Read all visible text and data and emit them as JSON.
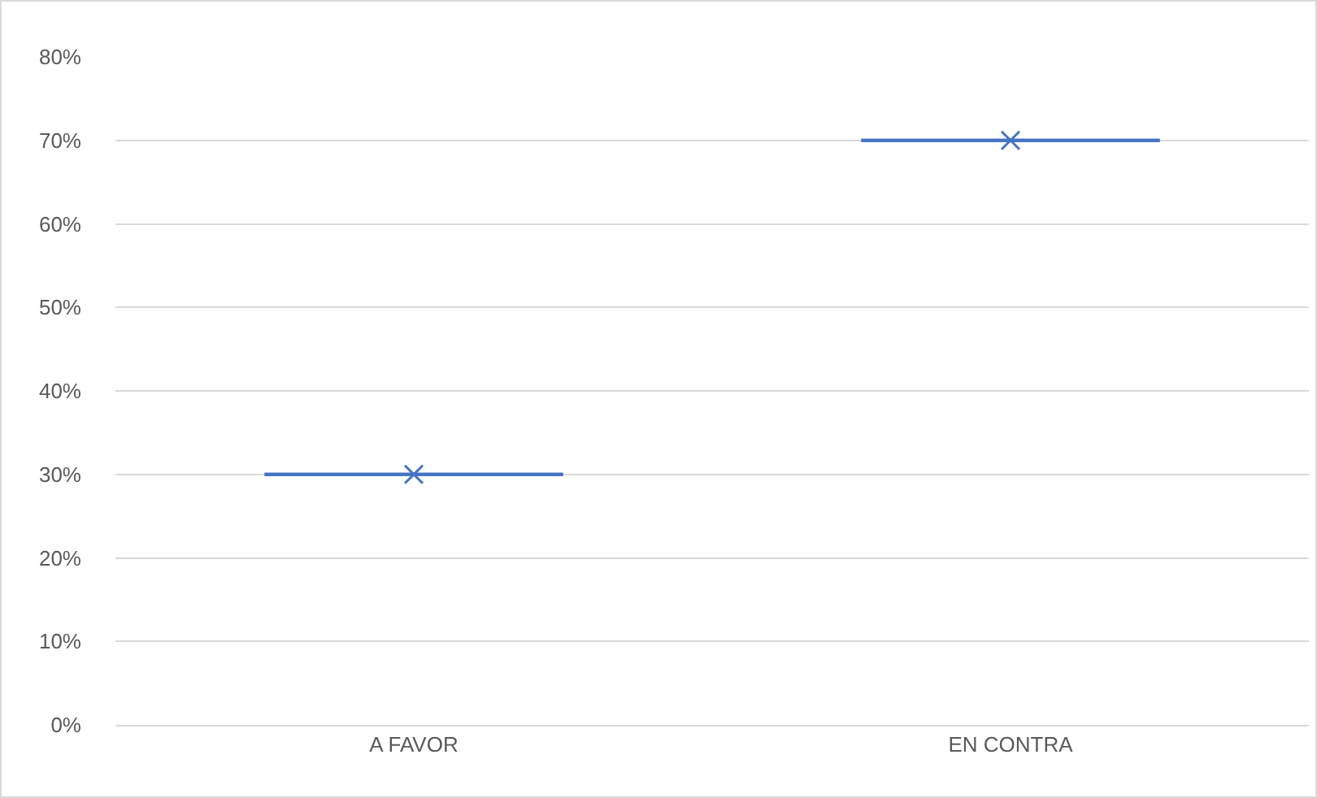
{
  "chart_data": {
    "type": "box",
    "categories": [
      "A FAVOR",
      "EN CONTRA"
    ],
    "boxes": [
      {
        "low": 30,
        "q1": 30,
        "median": 30,
        "q3": 30,
        "high": 30,
        "mean": 30
      },
      {
        "low": 70,
        "q1": 70,
        "median": 70,
        "q3": 70,
        "high": 70,
        "mean": 70
      }
    ],
    "color": "#4472c4",
    "marker": "cross",
    "grid": "y",
    "ylim": [
      0,
      80
    ],
    "yticks": [
      {
        "value": 0,
        "label": "0%"
      },
      {
        "value": 10,
        "label": "10%"
      },
      {
        "value": 20,
        "label": "20%"
      },
      {
        "value": 30,
        "label": "30%"
      },
      {
        "value": 40,
        "label": "40%"
      },
      {
        "value": 50,
        "label": "50%"
      },
      {
        "value": 60,
        "label": "60%"
      },
      {
        "value": 70,
        "label": "70%"
      },
      {
        "value": 80,
        "label": "80%"
      }
    ]
  }
}
